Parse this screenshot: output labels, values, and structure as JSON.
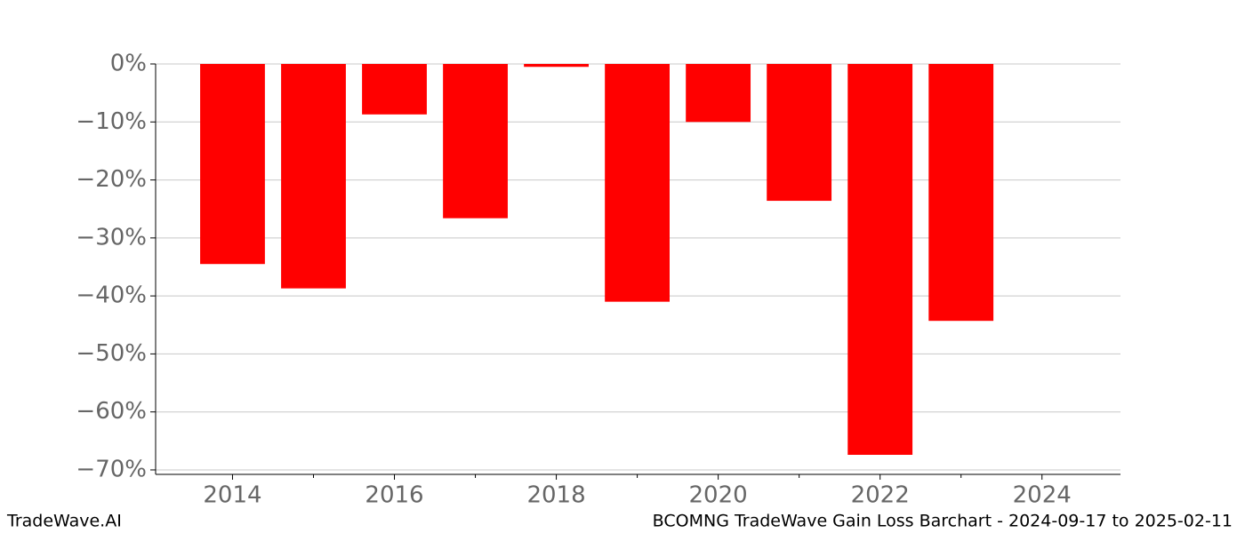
{
  "chart_data": {
    "type": "bar",
    "title": "BCOMNG TradeWave Gain Loss Barchart - 2024-09-17 to 2025-02-11",
    "watermark": "TradeWave.AI",
    "x": [
      2014,
      2015,
      2016,
      2017,
      2018,
      2019,
      2020,
      2021,
      2022,
      2023
    ],
    "values": [
      -34.5,
      -38.7,
      -8.7,
      -26.6,
      -0.5,
      -41.0,
      -10.0,
      -23.6,
      -67.4,
      -44.3
    ],
    "color": "#ff0000",
    "xlim": [
      2013.05,
      2024.97
    ],
    "xticks": [
      2014,
      2016,
      2018,
      2020,
      2022,
      2024
    ],
    "xminorticks": [
      2015,
      2017,
      2019,
      2021,
      2023
    ],
    "ylim": [
      -70.77,
      0
    ],
    "yticks": [
      {
        "value": 0,
        "label": "0%"
      },
      {
        "value": -10,
        "label": "−10%"
      },
      {
        "value": -20,
        "label": "−20%"
      },
      {
        "value": -30,
        "label": "−30%"
      },
      {
        "value": -40,
        "label": "−40%"
      },
      {
        "value": -50,
        "label": "−50%"
      },
      {
        "value": -60,
        "label": "−60%"
      },
      {
        "value": -70,
        "label": "−70%"
      }
    ],
    "bar_width": 0.8,
    "grid": true
  }
}
